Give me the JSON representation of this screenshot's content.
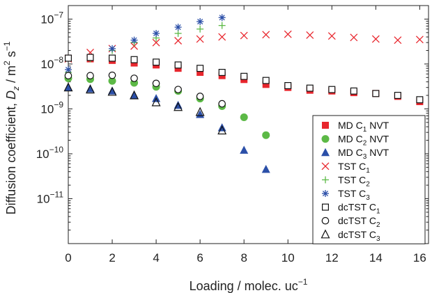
{
  "chart_data": {
    "type": "scatter",
    "xlabel": "Loading / molec. uc",
    "xlabel_sup": "−1",
    "ylabel_main": "Diffusion coefficient, ",
    "ylabel_var": "D",
    "ylabel_sub": "z",
    "ylabel_units": " / m",
    "ylabel_sup1": "2",
    "ylabel_s": " s",
    "ylabel_sup2": "−1",
    "xlim": [
      0,
      16.4
    ],
    "ylim": [
      1e-12,
      2e-07
    ],
    "yscale": "log",
    "xticks": [
      "0",
      "2",
      "4",
      "6",
      "8",
      "10",
      "12",
      "14",
      "16"
    ],
    "yticks": [
      {
        "base": "10",
        "exp": "−7",
        "value": 1e-07
      },
      {
        "base": "10",
        "exp": "−8",
        "value": 1e-08
      },
      {
        "base": "10",
        "exp": "−9",
        "value": 1e-09
      },
      {
        "base": "10",
        "exp": "−10",
        "value": 1e-10
      },
      {
        "base": "10",
        "exp": "−11",
        "value": 1e-11
      }
    ],
    "legend_position": "bottom-right",
    "series": [
      {
        "name": "MD C1 NVT",
        "label_main": "MD C",
        "label_sub": "1",
        "label_tail": " NVT",
        "marker": "square-filled",
        "color": "#e8262d",
        "x": [
          0,
          1,
          2,
          3,
          4,
          5,
          6,
          7,
          8,
          9,
          10,
          11,
          12,
          13,
          14,
          15,
          16
        ],
        "y": [
          1.35e-08,
          1.3e-08,
          1.2e-08,
          1.05e-08,
          9.5e-09,
          8e-09,
          6.5e-09,
          5.5e-09,
          4.5e-09,
          3.5e-09,
          3e-09,
          2.6e-09,
          2.5e-09,
          2.3e-09,
          2.2e-09,
          1.9e-09,
          1.45e-09
        ]
      },
      {
        "name": "MD C2 NVT",
        "label_main": "MD C",
        "label_sub": "2",
        "label_tail": " NVT",
        "marker": "circle-filled",
        "color": "#5cb946",
        "x": [
          0,
          1,
          2,
          3,
          4,
          5,
          6,
          7,
          8,
          9
        ],
        "y": [
          4.8e-09,
          4.6e-09,
          4.2e-09,
          3.8e-09,
          3.1e-09,
          2.5e-09,
          1.7e-09,
          1.15e-09,
          6.5e-10,
          2.6e-10
        ]
      },
      {
        "name": "MD C3 NVT",
        "label_main": "MD C",
        "label_sub": "3",
        "label_tail": " NVT",
        "marker": "triangle-filled",
        "color": "#2b4fa8",
        "x": [
          0,
          1,
          2,
          3,
          4,
          5,
          6,
          7,
          8,
          9
        ],
        "y": [
          3e-09,
          2.8e-09,
          2.5e-09,
          2e-09,
          1.7e-09,
          1.2e-09,
          7.5e-10,
          3.8e-10,
          1.2e-10,
          4.5e-11
        ]
      },
      {
        "name": "TST C1",
        "label_main": "TST C",
        "label_sub": "1",
        "label_tail": "",
        "marker": "x",
        "color": "#e8262d",
        "x": [
          0,
          1,
          2,
          3,
          4,
          5,
          6,
          7,
          8,
          9,
          10,
          11,
          12,
          13,
          14,
          15,
          16
        ],
        "y": [
          1.3e-08,
          1.8e-08,
          2.2e-08,
          2.5e-08,
          3e-08,
          3.3e-08,
          3.6e-08,
          4e-08,
          4.3e-08,
          4.5e-08,
          4.6e-08,
          4.4e-08,
          4.2e-08,
          3.9e-08,
          3.6e-08,
          3.4e-08,
          3.5e-08
        ]
      },
      {
        "name": "TST C2",
        "label_main": "TST C",
        "label_sub": "2",
        "label_tail": "",
        "marker": "plus",
        "color": "#5cb946",
        "x": [
          0,
          1,
          2,
          3,
          4,
          5,
          6,
          7
        ],
        "y": [
          6.5e-09,
          1.3e-08,
          2e-08,
          3e-08,
          3.8e-08,
          4.8e-08,
          6e-08,
          7.2e-08
        ]
      },
      {
        "name": "TST C3",
        "label_main": "TST C",
        "label_sub": "3",
        "label_tail": "",
        "marker": "star",
        "color": "#2b4fa8",
        "x": [
          0,
          1,
          2,
          3,
          4,
          5,
          6,
          7
        ],
        "y": [
          7.5e-09,
          1.4e-08,
          2.2e-08,
          3.4e-08,
          4.8e-08,
          6.6e-08,
          8.8e-08,
          1.08e-07
        ]
      },
      {
        "name": "dcTST C1",
        "label_main": "dcTST C",
        "label_sub": "1",
        "label_tail": "",
        "marker": "square-open",
        "color": "#111111",
        "x": [
          0,
          1,
          2,
          3,
          4,
          5,
          6,
          7,
          8,
          9,
          10,
          11,
          12,
          13,
          14,
          15,
          16
        ],
        "y": [
          1.35e-08,
          1.4e-08,
          1.35e-08,
          1.25e-08,
          1.1e-08,
          9.5e-09,
          8e-09,
          6.5e-09,
          5.3e-09,
          4.3e-09,
          3.3e-09,
          2.9e-09,
          2.7e-09,
          2.5e-09,
          2.2e-09,
          2e-09,
          1.6e-09
        ]
      },
      {
        "name": "dcTST C2",
        "label_main": "dcTST C",
        "label_sub": "2",
        "label_tail": "",
        "marker": "circle-open",
        "color": "#111111",
        "x": [
          0,
          1,
          2,
          3,
          4,
          5,
          6,
          7
        ],
        "y": [
          5.5e-09,
          5.5e-09,
          5.6e-09,
          4.8e-09,
          3.7e-09,
          2.7e-09,
          1.9e-09,
          1.3e-09
        ]
      },
      {
        "name": "dcTST C3",
        "label_main": "dcTST C",
        "label_sub": "3",
        "label_tail": "",
        "marker": "triangle-open",
        "color": "#111111",
        "x": [
          0,
          1,
          2,
          3,
          4,
          5,
          6,
          7
        ],
        "y": [
          3e-09,
          2.7e-09,
          2.4e-09,
          2e-09,
          1.4e-09,
          1.1e-09,
          8.5e-10,
          3.3e-10
        ]
      }
    ]
  }
}
